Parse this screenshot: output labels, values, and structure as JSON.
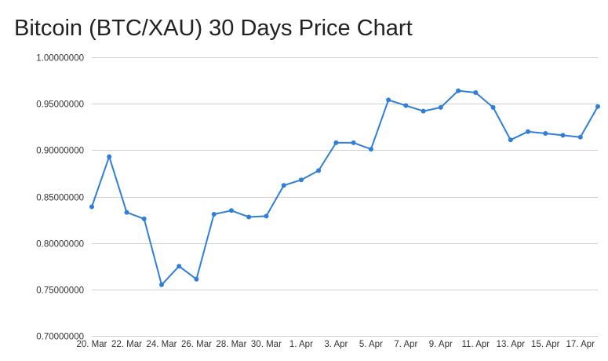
{
  "chart_data": {
    "type": "line",
    "title": "Bitcoin (BTC/XAU) 30 Days Price Chart",
    "xlabel": "",
    "ylabel": "",
    "ylim": [
      0.7,
      1.0
    ],
    "y_ticks": [
      "1.00000000",
      "0.95000000",
      "0.90000000",
      "0.85000000",
      "0.80000000",
      "0.75000000",
      "0.70000000"
    ],
    "y_tick_values": [
      1.0,
      0.95,
      0.9,
      0.85,
      0.8,
      0.75,
      0.7
    ],
    "x_ticks": [
      "20. Mar",
      "22. Mar",
      "24. Mar",
      "26. Mar",
      "28. Mar",
      "30. Mar",
      "1. Apr",
      "3. Apr",
      "5. Apr",
      "7. Apr",
      "9. Apr",
      "11. Apr",
      "13. Apr",
      "15. Apr",
      "17. Apr"
    ],
    "grid": true,
    "legend": "none",
    "series": [
      {
        "color": "#2f7ed8",
        "x": [
          "2018-03-20",
          "2018-03-21",
          "2018-03-22",
          "2018-03-23",
          "2018-03-24",
          "2018-03-25",
          "2018-03-26",
          "2018-03-27",
          "2018-03-28",
          "2018-03-29",
          "2018-03-30",
          "2018-03-31",
          "2018-04-01",
          "2018-04-02",
          "2018-04-03",
          "2018-04-04",
          "2018-04-05",
          "2018-04-06",
          "2018-04-07",
          "2018-04-08",
          "2018-04-09",
          "2018-04-10",
          "2018-04-11",
          "2018-04-12",
          "2018-04-13",
          "2018-04-14",
          "2018-04-15",
          "2018-04-16",
          "2018-04-17",
          "2018-04-18"
        ],
        "values": [
          0.839,
          0.893,
          0.833,
          0.826,
          0.755,
          0.775,
          0.761,
          0.831,
          0.835,
          0.828,
          0.829,
          0.862,
          0.868,
          0.878,
          0.908,
          0.908,
          0.901,
          0.954,
          0.948,
          0.942,
          0.946,
          0.964,
          0.962,
          0.946,
          0.911,
          0.92,
          0.918,
          0.916,
          0.914,
          0.947
        ]
      }
    ]
  },
  "colors": {
    "line": "#2f7ed8",
    "grid": "#cfcfcf",
    "text": "#333333"
  }
}
